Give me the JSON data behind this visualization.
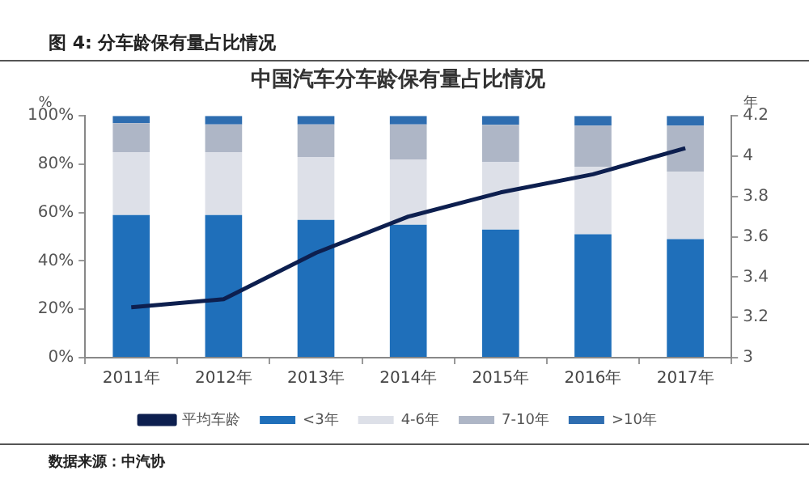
{
  "chart_data": {
    "type": "bar",
    "subtitle": "图 4:  分车龄保有量占比情况",
    "title": "中国汽车分车龄保有量占比情况",
    "ylabel": "%",
    "y2label": "年",
    "categories": [
      "2011年",
      "2012年",
      "2013年",
      "2014年",
      "2015年",
      "2016年",
      "2017年"
    ],
    "stacked": true,
    "series": [
      {
        "name": "<3年",
        "color": "#1f6fba",
        "values": [
          59,
          59,
          57,
          55,
          53,
          51,
          49
        ]
      },
      {
        "name": "4-6年",
        "color": "#dde0e8",
        "values": [
          26,
          26,
          26,
          27,
          28,
          28,
          28
        ]
      },
      {
        "name": "7-10年",
        "color": "#aeb6c6",
        "values": [
          12,
          11.5,
          13.5,
          14.5,
          15.3,
          17,
          19
        ]
      },
      {
        "name": ">10年",
        "color": "#2e6db0",
        "values": [
          3,
          3.5,
          3.5,
          3.5,
          3.7,
          4,
          4
        ]
      },
      {
        "name": "平均车龄",
        "type": "line",
        "axis": "y2",
        "color": "#0d1f4f",
        "values": [
          3.25,
          3.29,
          3.52,
          3.7,
          3.82,
          3.91,
          4.04
        ]
      }
    ],
    "ylim": [
      0,
      100
    ],
    "yticks": [
      {
        "value": 0,
        "label": "0%"
      },
      {
        "value": 20,
        "label": "20%"
      },
      {
        "value": 40,
        "label": "40%"
      },
      {
        "value": 60,
        "label": "60%"
      },
      {
        "value": 80,
        "label": "80%"
      },
      {
        "value": 100,
        "label": "100%"
      }
    ],
    "y2lim": [
      3,
      4.2
    ],
    "y2ticks": [
      3,
      3.2,
      3.4,
      3.6,
      3.8,
      4,
      4.2
    ],
    "grid": false,
    "legend": "bottom",
    "marker": "none",
    "line_style": "solid",
    "annotations": [
      "数据来源：中汽协"
    ]
  }
}
